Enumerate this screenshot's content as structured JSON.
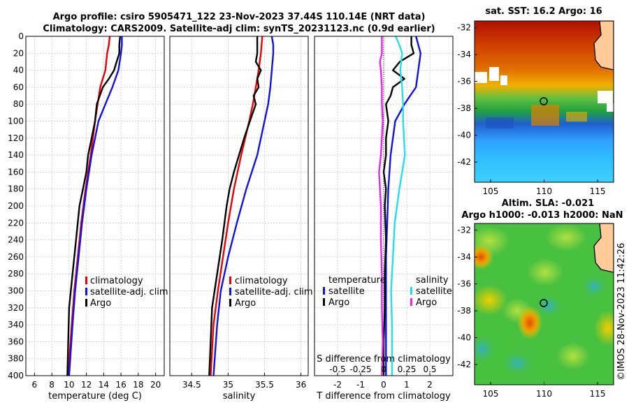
{
  "header": {
    "title_line1": "Argo profile: csiro 5905471_122 23-Nov-2023 37.44S 110.14E (NRT data)",
    "title_line2": "Climatology: CARS2009. Satellite-adj clim: synTS_20231123.nc (0.9d earlier)"
  },
  "colors": {
    "red": "#ee0000",
    "blue": "#1010ee",
    "black": "#000000",
    "cyan": "#22e0e8",
    "magenta": "#ee22ee"
  },
  "chart_data": [
    {
      "type": "line",
      "id": "temperature",
      "xlabel": "temperature (deg C)",
      "ylabel": "",
      "xlim": [
        5,
        21
      ],
      "ylim": [
        400,
        0
      ],
      "xticks": [
        6,
        8,
        10,
        12,
        14,
        16,
        18,
        20
      ],
      "yticks": [
        0,
        20,
        40,
        60,
        80,
        100,
        120,
        140,
        160,
        180,
        200,
        220,
        240,
        260,
        280,
        300,
        320,
        340,
        360,
        380,
        400
      ],
      "legend": [
        "climatology",
        "satellite-adj. clim",
        "Argo"
      ],
      "series": [
        {
          "name": "climatology",
          "color": "red",
          "depth": [
            0,
            10,
            20,
            40,
            60,
            80,
            100,
            140,
            180,
            220,
            260,
            300,
            340,
            400
          ],
          "values": [
            14.7,
            14.6,
            14.4,
            14.2,
            13.6,
            13.3,
            13.0,
            12.5,
            11.9,
            11.4,
            11.0,
            10.6,
            10.3,
            9.9
          ]
        },
        {
          "name": "satellite-adj. clim",
          "color": "blue",
          "depth": [
            0,
            10,
            20,
            40,
            60,
            80,
            100,
            140,
            180,
            220,
            260,
            300,
            340,
            400
          ],
          "values": [
            16.1,
            16.1,
            16.0,
            15.7,
            15.0,
            14.2,
            13.4,
            12.6,
            12.0,
            11.5,
            11.1,
            10.7,
            10.4,
            10.0
          ]
        },
        {
          "name": "Argo",
          "color": "black",
          "depth": [
            0,
            10,
            20,
            30,
            40,
            50,
            60,
            80,
            100,
            120,
            140,
            160,
            180,
            200,
            240,
            280,
            320,
            360,
            400
          ],
          "values": [
            15.9,
            15.8,
            15.8,
            15.5,
            15.2,
            14.6,
            13.9,
            13.2,
            13.0,
            12.6,
            12.2,
            12.0,
            11.6,
            11.2,
            10.8,
            10.4,
            10.0,
            9.9,
            9.8
          ]
        }
      ]
    },
    {
      "type": "line",
      "id": "salinity",
      "xlabel": "salinity",
      "ylabel": "",
      "xlim": [
        34.2,
        36.1
      ],
      "ylim": [
        400,
        0
      ],
      "xticks": [
        34.5,
        35,
        35.5,
        36
      ],
      "yticks": [
        0,
        20,
        40,
        60,
        80,
        100,
        120,
        140,
        160,
        180,
        200,
        220,
        240,
        260,
        280,
        300,
        320,
        340,
        360,
        380,
        400
      ],
      "legend": [
        "climatology",
        "satellite-adj. clim",
        "Argo"
      ],
      "series": [
        {
          "name": "climatology",
          "color": "red",
          "depth": [
            0,
            20,
            40,
            60,
            80,
            100,
            140,
            180,
            220,
            260,
            300,
            340,
            400
          ],
          "values": [
            35.47,
            35.45,
            35.42,
            35.38,
            35.34,
            35.29,
            35.18,
            35.08,
            35.0,
            34.93,
            34.86,
            34.8,
            34.76
          ]
        },
        {
          "name": "satellite-adj. clim",
          "color": "blue",
          "depth": [
            0,
            10,
            20,
            40,
            60,
            80,
            100,
            140,
            180,
            220,
            260,
            300,
            340,
            400
          ],
          "values": [
            35.6,
            35.62,
            35.62,
            35.6,
            35.58,
            35.55,
            35.5,
            35.4,
            35.25,
            35.12,
            35.0,
            34.9,
            34.85,
            34.8
          ]
        },
        {
          "name": "Argo",
          "color": "black",
          "depth": [
            0,
            10,
            20,
            30,
            40,
            50,
            60,
            70,
            80,
            100,
            120,
            140,
            160,
            180,
            200,
            240,
            280,
            320,
            360,
            400
          ],
          "values": [
            35.4,
            35.4,
            35.4,
            35.38,
            35.45,
            35.4,
            35.42,
            35.35,
            35.38,
            35.3,
            35.22,
            35.15,
            35.08,
            35.02,
            34.98,
            34.92,
            34.85,
            34.78,
            34.76,
            34.74
          ]
        }
      ]
    },
    {
      "type": "line",
      "id": "difference",
      "xlabel": "T difference from climatology",
      "xlabel_top": "S difference from climatology",
      "xlim": [
        -3,
        3
      ],
      "ylim": [
        400,
        0
      ],
      "xticks": [
        -2,
        -1,
        0,
        1,
        2
      ],
      "xticks_top": [
        -0.5,
        -0.25,
        0,
        0.25,
        0.5
      ],
      "xticks_top_labels": [
        "-0.5",
        "-0.25",
        "0",
        "0.25",
        "0.5"
      ],
      "yticks": [
        0,
        20,
        40,
        60,
        80,
        100,
        120,
        140,
        160,
        180,
        200,
        220,
        240,
        260,
        280,
        300,
        320,
        340,
        360,
        380,
        400
      ],
      "legend_titles": [
        "temperature",
        "salinity"
      ],
      "legend": [
        "satellite",
        "Argo",
        "satellite",
        "Argo"
      ],
      "series": [
        {
          "name": "temperature satellite",
          "color": "blue",
          "depth": [
            0,
            10,
            20,
            40,
            60,
            80,
            100,
            140,
            180,
            220,
            260,
            300,
            340,
            400
          ],
          "values": [
            1.4,
            1.5,
            1.6,
            1.5,
            1.4,
            0.9,
            0.5,
            0.3,
            0.2,
            0.15,
            0.1,
            0.1,
            0.1,
            0.1
          ]
        },
        {
          "name": "temperature Argo",
          "color": "black",
          "depth": [
            0,
            10,
            20,
            30,
            40,
            50,
            60,
            70,
            80,
            100,
            120,
            140,
            160,
            180,
            200,
            240,
            280,
            320,
            360,
            400
          ],
          "values": [
            1.2,
            1.2,
            1.3,
            0.7,
            0.4,
            0.9,
            0.4,
            0.3,
            0.1,
            0.2,
            0.1,
            0.1,
            0.0,
            0.1,
            0.05,
            0.1,
            0.05,
            0.05,
            0.0,
            0.0
          ]
        },
        {
          "name": "salinity satellite",
          "color": "cyan",
          "depth": [
            0,
            10,
            20,
            40,
            60,
            80,
            100,
            140,
            180,
            220,
            260,
            300,
            340,
            400
          ],
          "values": [
            0.13,
            0.17,
            0.2,
            0.18,
            0.2,
            0.21,
            0.21,
            0.23,
            0.17,
            0.12,
            0.1,
            0.08,
            0.09,
            0.09
          ]
        },
        {
          "name": "salinity Argo",
          "color": "magenta",
          "depth": [
            0,
            20,
            30,
            40,
            60,
            80,
            100,
            140,
            160,
            180,
            200,
            240,
            280,
            320,
            360,
            400
          ],
          "values": [
            -0.02,
            -0.02,
            -0.04,
            -0.03,
            -0.02,
            -0.02,
            -0.01,
            -0.03,
            -0.05,
            -0.04,
            -0.03,
            -0.03,
            -0.02,
            -0.02,
            -0.01,
            -0.02
          ]
        }
      ]
    },
    {
      "type": "heatmap",
      "id": "sst-map",
      "title": "sat. SST: 16.2 Argo: 16",
      "xticks": [
        105,
        110,
        115
      ],
      "yticks": [
        -32,
        -34,
        -36,
        -38,
        -40,
        -42
      ],
      "xlim": [
        103.5,
        116.5
      ],
      "ylim": [
        -43.5,
        -31.5
      ],
      "marker": {
        "lon": 110.14,
        "lat": -37.44
      }
    },
    {
      "type": "heatmap",
      "id": "sla-map",
      "title_line1": "Altim. SLA: -0.021",
      "title_line2": "Argo h1000: -0.013 h2000: NaN",
      "xticks": [
        105,
        110,
        115
      ],
      "yticks": [
        -32,
        -34,
        -36,
        -38,
        -40,
        -42
      ],
      "xlim": [
        103.5,
        116.5
      ],
      "ylim": [
        -43.5,
        -31.5
      ],
      "marker": {
        "lon": 110.14,
        "lat": -37.44
      }
    }
  ],
  "footer": {
    "stamp": "©IMOS 28-Nov-2023 11:42:26"
  }
}
